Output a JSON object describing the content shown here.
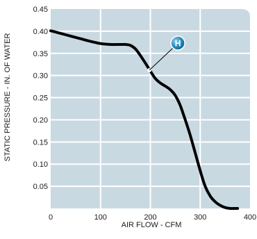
{
  "chart_data": {
    "type": "line",
    "title": "",
    "xlabel": "AIR FLOW - CFM",
    "ylabel": "STATIC PRESSURE - IN. OF WATER",
    "xlim": [
      0,
      400
    ],
    "ylim": [
      0,
      0.45
    ],
    "grid": true,
    "x_ticks": [
      "0",
      "100",
      "200",
      "300",
      "400"
    ],
    "y_ticks": [
      "0.05",
      "0.10",
      "0.15",
      "0.20",
      "0.25",
      "0.30",
      "0.35",
      "0.40",
      "0.45"
    ],
    "series": [
      {
        "x": [
          0,
          20,
          40,
          60,
          80,
          100,
          120,
          140,
          150,
          160,
          170,
          180,
          190,
          200,
          210,
          220,
          230,
          240,
          250,
          260,
          270,
          280,
          290,
          300,
          310,
          320,
          330,
          340,
          350,
          360,
          370,
          375
        ],
        "y": [
          0.401,
          0.395,
          0.389,
          0.383,
          0.377,
          0.372,
          0.37,
          0.37,
          0.37,
          0.368,
          0.36,
          0.345,
          0.328,
          0.31,
          0.293,
          0.283,
          0.276,
          0.268,
          0.255,
          0.232,
          0.2,
          0.165,
          0.125,
          0.085,
          0.05,
          0.028,
          0.015,
          0.007,
          0.002,
          0.0,
          0.0,
          0.0
        ]
      }
    ],
    "annotations": [
      {
        "label": "H",
        "x": 198,
        "y": 0.312
      }
    ],
    "colors": {
      "plot_background": "#c9d9e2",
      "grid": "#ffffff",
      "line": "#000000",
      "marker": "#2a8fc4"
    }
  }
}
